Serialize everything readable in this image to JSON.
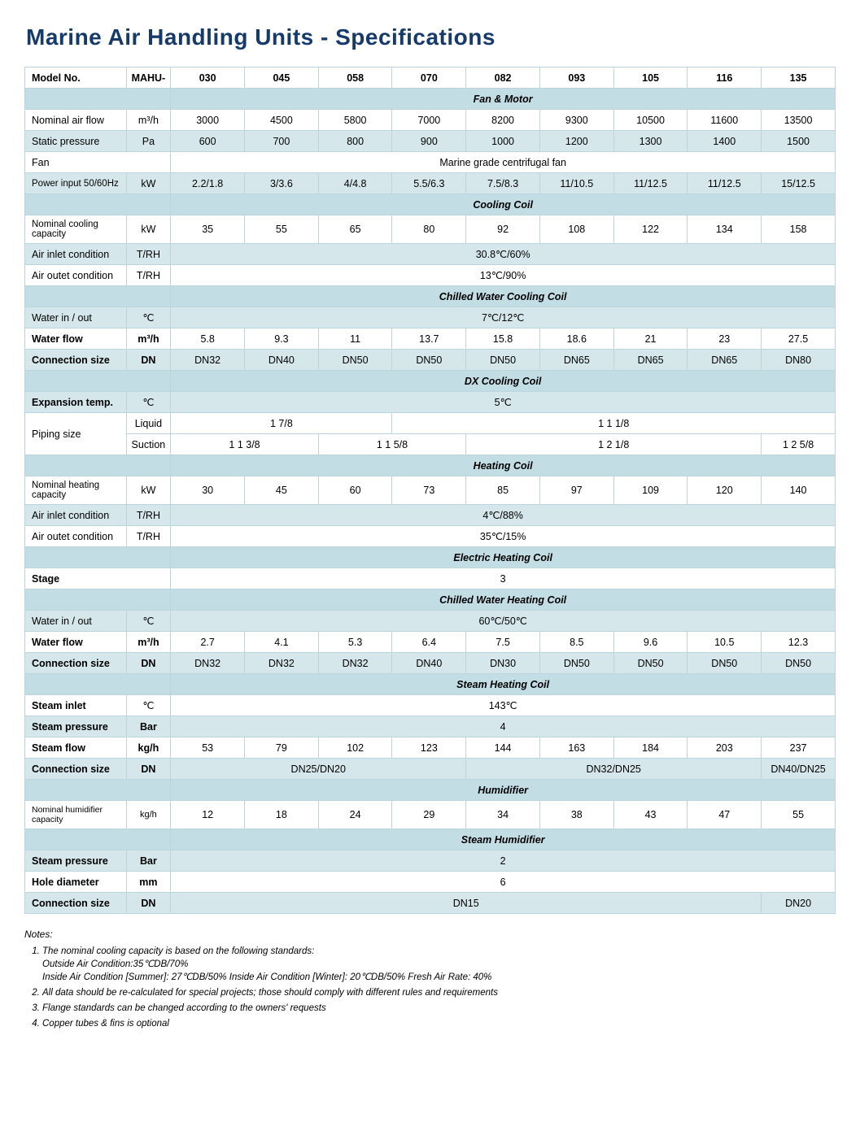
{
  "title": "Marine Air Handling  Units - Specifications",
  "header": {
    "model_no": "Model No.",
    "prefix": "MAHU-",
    "cols": [
      "030",
      "045",
      "058",
      "070",
      "082",
      "093",
      "105",
      "116",
      "135"
    ]
  },
  "sections": {
    "fan_motor": "Fan & Motor",
    "cooling_coil": "Cooling Coil",
    "cw_cool": "Chilled Water Cooling Coil",
    "dx_cool": "DX Cooling Coil",
    "heating_coil": "Heating Coil",
    "e_heat": "Electric Heating Coil",
    "cw_heat": "Chilled Water Heating Coil",
    "steam_heat": "Steam Heating Coil",
    "humidifier": "Humidifier",
    "steam_hum": "Steam Humidifier"
  },
  "rows": {
    "nom_air": {
      "label": "Nominal air flow",
      "unit": "m³/h",
      "v": [
        "3000",
        "4500",
        "5800",
        "7000",
        "8200",
        "9300",
        "10500",
        "11600",
        "13500"
      ]
    },
    "static_p": {
      "label": "Static pressure",
      "unit": "Pa",
      "v": [
        "600",
        "700",
        "800",
        "900",
        "1000",
        "1200",
        "1300",
        "1400",
        "1500"
      ]
    },
    "fan": {
      "label": "Fan",
      "span": "Marine grade centrifugal fan"
    },
    "power": {
      "label": "Power input 50/60Hz",
      "unit": "kW",
      "v": [
        "2.2/1.8",
        "3/3.6",
        "4/4.8",
        "5.5/6.3",
        "7.5/8.3",
        "11/10.5",
        "11/12.5",
        "11/12.5",
        "15/12.5"
      ]
    },
    "nom_cool": {
      "label": "Nominal cooling capacity",
      "unit": "kW",
      "v": [
        "35",
        "55",
        "65",
        "80",
        "92",
        "108",
        "122",
        "134",
        "158"
      ]
    },
    "air_in_c": {
      "label": "Air inlet condition",
      "unit": "T/RH",
      "span": "30.8℃/60%"
    },
    "air_out_c": {
      "label": "Air outet condition",
      "unit": "T/RH",
      "span": "13℃/90%"
    },
    "cw_io": {
      "label": "Water in / out",
      "unit": "℃",
      "span": "7℃/12℃"
    },
    "cw_flow": {
      "label": "Water flow",
      "unit": "m³/h",
      "v": [
        "5.8",
        "9.3",
        "11",
        "13.7",
        "15.8",
        "18.6",
        "21",
        "23",
        "27.5"
      ]
    },
    "cw_conn": {
      "label": "Connection size",
      "unit": "DN",
      "v": [
        "DN32",
        "DN40",
        "DN50",
        "DN50",
        "DN50",
        "DN65",
        "DN65",
        "DN65",
        "DN80"
      ]
    },
    "exp_t": {
      "label": "Expansion temp.",
      "unit": "℃",
      "span": "5℃"
    },
    "pipe": {
      "label": "Piping size",
      "liquid": "Liquid",
      "suction": "Suction",
      "liq_a": "1  7/8",
      "liq_b": "1  1 1/8",
      "suc_a": "1  1 3/8",
      "suc_b": "1  1 5/8",
      "suc_c": "1  2 1/8",
      "suc_d": "1  2 5/8"
    },
    "nom_heat": {
      "label": "Nominal heating capacity",
      "unit": "kW",
      "v": [
        "30",
        "45",
        "60",
        "73",
        "85",
        "97",
        "109",
        "120",
        "140"
      ]
    },
    "air_in_h": {
      "label": "Air inlet condition",
      "unit": "T/RH",
      "span": "4℃/88%"
    },
    "air_out_h": {
      "label": "Air outet condition",
      "unit": "T/RH",
      "span": "35℃/15%"
    },
    "stage": {
      "label": "Stage",
      "span": "3"
    },
    "hw_io": {
      "label": "Water in / out",
      "unit": "℃",
      "span": "60℃/50℃"
    },
    "hw_flow": {
      "label": "Water flow",
      "unit": "m³/h",
      "v": [
        "2.7",
        "4.1",
        "5.3",
        "6.4",
        "7.5",
        "8.5",
        "9.6",
        "10.5",
        "12.3"
      ]
    },
    "hw_conn": {
      "label": "Connection size",
      "unit": "DN",
      "v": [
        "DN32",
        "DN32",
        "DN32",
        "DN40",
        "DN30",
        "DN50",
        "DN50",
        "DN50",
        "DN50"
      ]
    },
    "st_in": {
      "label": "Steam inlet",
      "unit": "℃",
      "span": "143℃"
    },
    "st_p": {
      "label": "Steam pressure",
      "unit": "Bar",
      "span": "4"
    },
    "st_flow": {
      "label": "Steam flow",
      "unit": "kg/h",
      "v": [
        "53",
        "79",
        "102",
        "123",
        "144",
        "163",
        "184",
        "203",
        "237"
      ]
    },
    "st_conn": {
      "label": "Connection size",
      "unit": "DN",
      "a": "DN25/DN20",
      "b": "DN32/DN25",
      "c": "DN40/DN25"
    },
    "hum_cap": {
      "label": "Nominal humidifier capacity",
      "unit": "kg/h",
      "v": [
        "12",
        "18",
        "24",
        "29",
        "34",
        "38",
        "43",
        "47",
        "55"
      ]
    },
    "sh_p": {
      "label": "Steam pressure",
      "unit": "Bar",
      "span": "2"
    },
    "sh_hole": {
      "label": "Hole diameter",
      "unit": "mm",
      "span": "6"
    },
    "sh_conn": {
      "label": "Connection size",
      "unit": "DN",
      "a": "DN15",
      "b": "DN20"
    }
  },
  "notes": {
    "title": "Notes:",
    "items": [
      "The nominal cooling capacity is based on the following standards:\nOutside Air Condition:35℃DB/70%\nInside Air Condition [Summer]: 27℃DB/50% Inside Air Condition [Winter]: 20℃DB/50% Fresh Air Rate: 40%",
      "All data should be re-calculated for special projects; those should comply with different rules and requirements",
      "Flange standards can be changed according to the owners' requests",
      "Copper tubes & fins is optional"
    ]
  },
  "colors": {
    "title": "#163b6b",
    "section_bg": "#c3dde5",
    "shade_bg": "#d6e7ec",
    "border": "#bcd4dc"
  }
}
